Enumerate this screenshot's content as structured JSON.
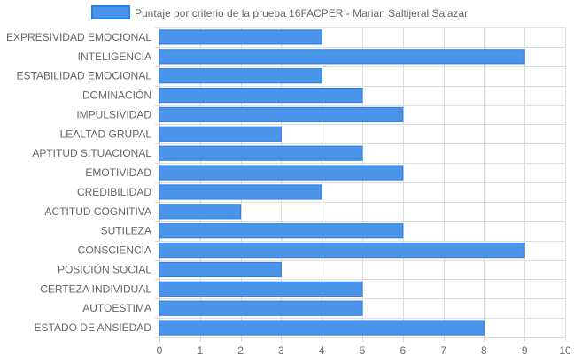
{
  "chart_data": {
    "type": "bar",
    "orientation": "horizontal",
    "legend_position": "top",
    "grid": true,
    "colors": {
      "bar_fill": "#4a95ea",
      "bar_border": "#2f7ee6",
      "grid": "#dddddd",
      "text": "#666666"
    },
    "series": [
      {
        "name": "Puntaje por criterio de la prueba 16FACPER - Marian Saltijeral Salazar"
      }
    ],
    "categories": [
      "EXPRESIVIDAD EMOCIONAL",
      "INTELIGENCIA",
      "ESTABILIDAD EMOCIONAL",
      "DOMINACIÓN",
      "IMPULSIVIDAD",
      "LEALTAD GRUPAL",
      "APTITUD SITUACIONAL",
      "EMOTIVIDAD",
      "CREDIBILIDAD",
      "ACTITUD COGNITIVA",
      "SUTILEZA",
      "CONSCIENCIA",
      "POSICIÓN SOCIAL",
      "CERTEZA INDIVIDUAL",
      "AUTOESTIMA",
      "ESTADO DE ANSIEDAD"
    ],
    "values": [
      4,
      9,
      4,
      5,
      6,
      3,
      5,
      6,
      4,
      2,
      6,
      9,
      3,
      5,
      5,
      8
    ],
    "xlim": [
      0,
      10
    ],
    "x_ticks": [
      "0",
      "1",
      "2",
      "3",
      "4",
      "5",
      "6",
      "7",
      "8",
      "9",
      "10"
    ]
  }
}
